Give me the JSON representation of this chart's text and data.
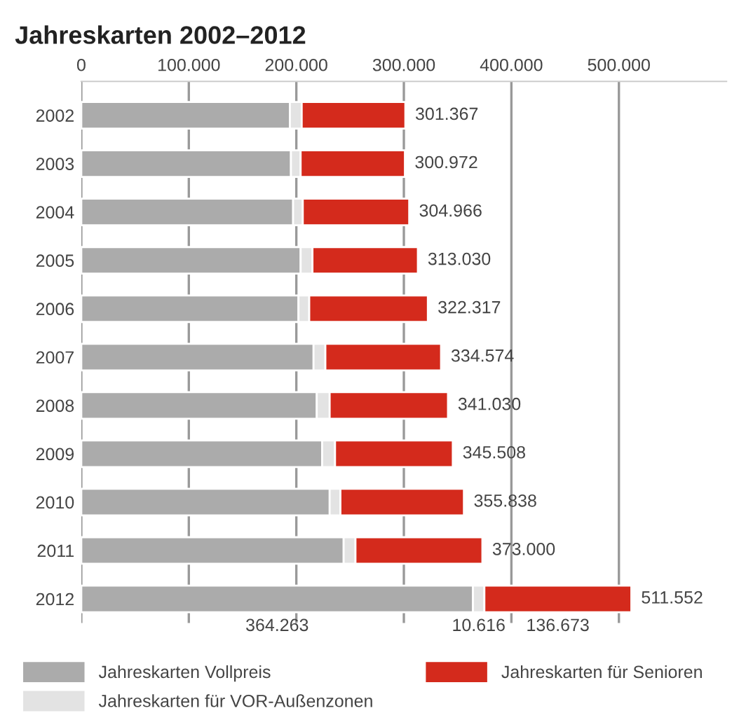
{
  "chart_data": {
    "type": "bar",
    "orientation": "horizontal",
    "stacked": true,
    "title": "Jahreskarten 2002–2012",
    "categories": [
      "2002",
      "2003",
      "2004",
      "2005",
      "2006",
      "2007",
      "2008",
      "2009",
      "2010",
      "2011",
      "2012"
    ],
    "series": [
      {
        "name": "Jahreskarten Vollpreis",
        "color": "#ababab",
        "values": [
          194000,
          195000,
          197000,
          204000,
          202000,
          216000,
          219000,
          224000,
          231000,
          244000,
          364263
        ],
        "value_labels": [
          null,
          null,
          null,
          null,
          null,
          null,
          null,
          null,
          null,
          null,
          "364.263"
        ]
      },
      {
        "name": "Jahreskarten für VOR-Außenzonen",
        "color": "#e3e3e3",
        "values": [
          11000,
          9000,
          9000,
          11000,
          10000,
          11000,
          12000,
          12000,
          10000,
          11000,
          10616
        ],
        "value_labels": [
          null,
          null,
          null,
          null,
          null,
          null,
          null,
          null,
          null,
          null,
          "10.616"
        ]
      },
      {
        "name": "Jahreskarten für Senioren",
        "color": "#d42a1c",
        "values": [
          96367,
          96972,
          98966,
          98030,
          110317,
          107574,
          110030,
          109508,
          114838,
          118000,
          136673
        ],
        "value_labels": [
          null,
          null,
          null,
          null,
          null,
          null,
          null,
          null,
          null,
          null,
          "136.673"
        ]
      }
    ],
    "totals": [
      "301.367",
      "300.972",
      "304.966",
      "313.030",
      "322.317",
      "334.574",
      "341.030",
      "345.508",
      "355.838",
      "373.000",
      "511.552"
    ],
    "xlim": [
      0,
      600000
    ],
    "xticks": [
      {
        "value": 0,
        "label": "0"
      },
      {
        "value": 100000,
        "label": "100.000"
      },
      {
        "value": 200000,
        "label": "200.000"
      },
      {
        "value": 300000,
        "label": "300.000"
      },
      {
        "value": 400000,
        "label": "400.000"
      },
      {
        "value": 500000,
        "label": "500.000"
      }
    ],
    "grid": "x",
    "legend": "bottom"
  }
}
